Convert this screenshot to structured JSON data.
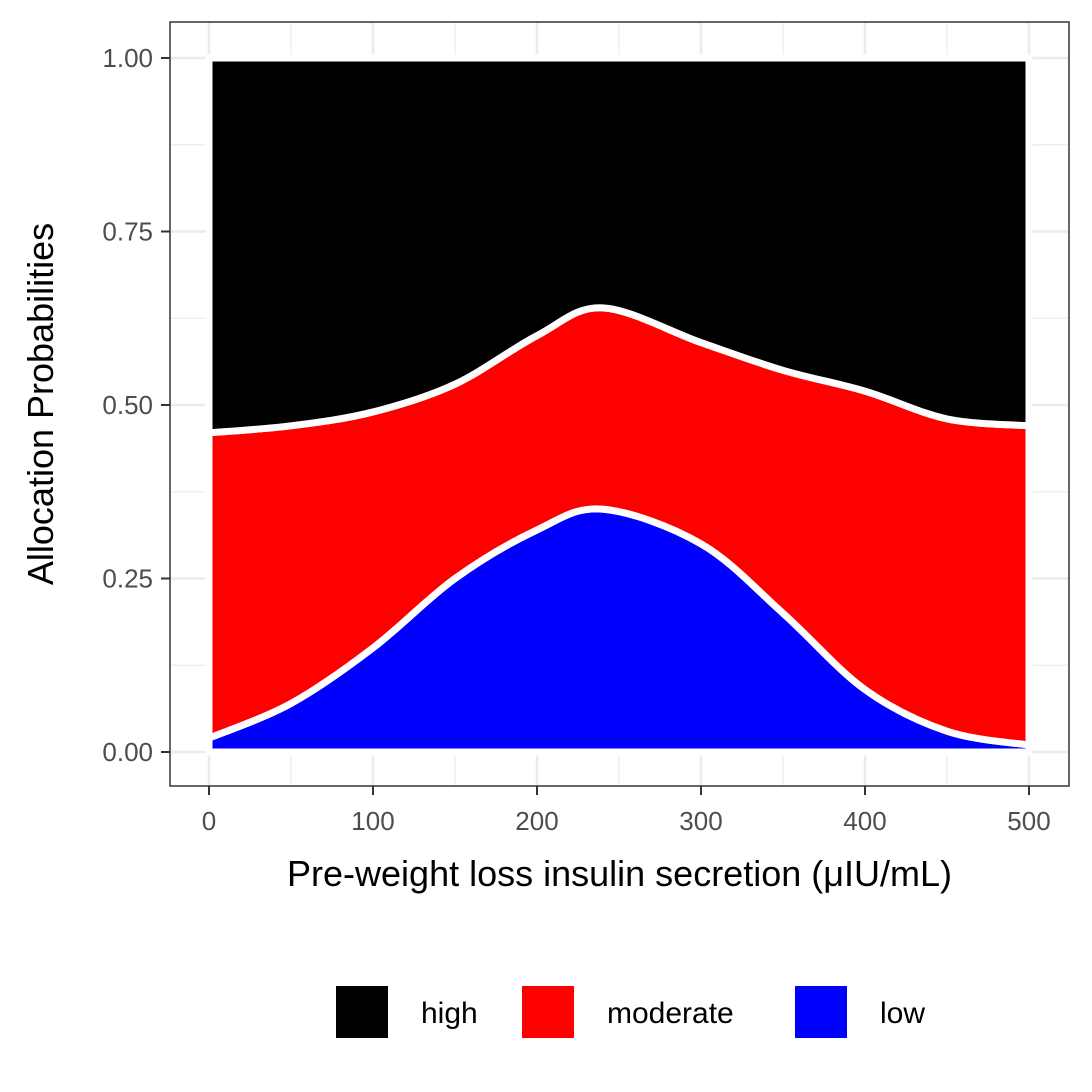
{
  "chart_data": {
    "type": "area",
    "stacked": true,
    "xlabel": "Pre-weight loss insulin secretion (μIU/mL)",
    "ylabel": "Allocation Probabilities",
    "xlim": [
      0,
      500
    ],
    "ylim": [
      0,
      1
    ],
    "x_ticks": [
      "0",
      "100",
      "200",
      "300",
      "400",
      "500"
    ],
    "y_ticks": [
      "0.00",
      "0.25",
      "0.50",
      "0.75",
      "1.00"
    ],
    "grid": true,
    "legend_position": "bottom",
    "x": [
      0,
      50,
      100,
      150,
      200,
      240,
      300,
      350,
      400,
      450,
      500
    ],
    "series": [
      {
        "name": "low",
        "color": "#0000FF",
        "values": [
          0.02,
          0.07,
          0.15,
          0.25,
          0.32,
          0.35,
          0.3,
          0.2,
          0.09,
          0.03,
          0.01
        ]
      },
      {
        "name": "moderate",
        "color": "#FF0000",
        "values": [
          0.44,
          0.4,
          0.34,
          0.28,
          0.28,
          0.29,
          0.29,
          0.35,
          0.43,
          0.45,
          0.46
        ]
      },
      {
        "name": "high",
        "color": "#000000",
        "values": [
          0.54,
          0.53,
          0.51,
          0.47,
          0.4,
          0.36,
          0.41,
          0.45,
          0.48,
          0.52,
          0.53
        ]
      }
    ],
    "legend": [
      {
        "label": "high",
        "color": "#000000"
      },
      {
        "label": "moderate",
        "color": "#FF0000"
      },
      {
        "label": "low",
        "color": "#0000FF"
      }
    ]
  }
}
